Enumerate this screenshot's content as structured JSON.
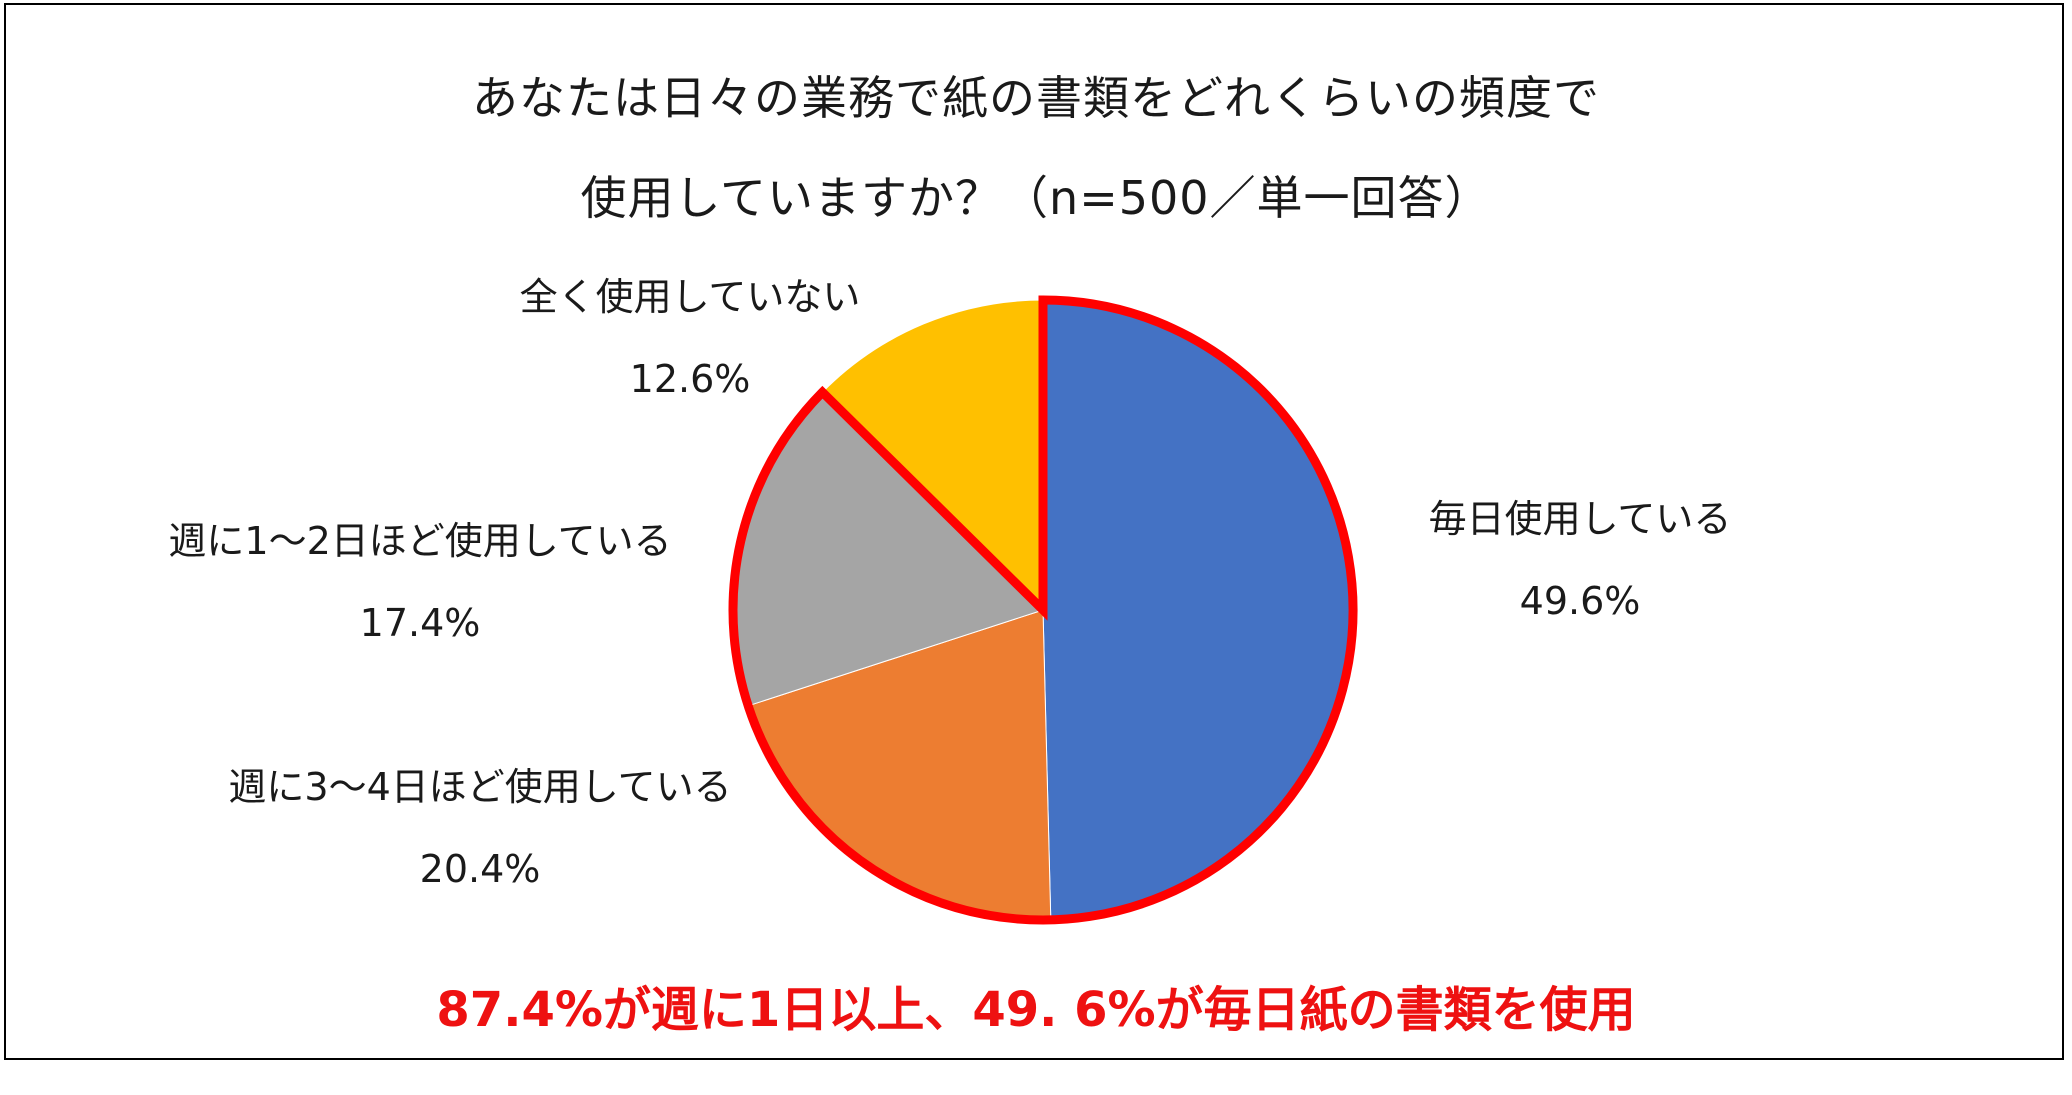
{
  "title_line1": "あなたは日々の業務で紙の書類をどれくらいの頻度で",
  "title_line2": "使用していますか？（n=500／単一回答）",
  "chart_data": {
    "type": "pie",
    "title": "あなたは日々の業務で紙の書類をどれくらいの頻度で使用していますか？（n=500／単一回答）",
    "slices": [
      {
        "label": "毎日使用している",
        "value": 49.6,
        "display": "49.6%",
        "color": "#4472C4"
      },
      {
        "label": "週に3〜4日ほど使用している",
        "value": 20.4,
        "display": "20.4%",
        "color": "#ED7D31"
      },
      {
        "label": "週に1〜2日ほど使用している",
        "value": 17.4,
        "display": "17.4%",
        "color": "#A5A5A5"
      },
      {
        "label": "全く使用していない",
        "value": 12.6,
        "display": "12.6%",
        "color": "#FFC000"
      }
    ],
    "highlight": {
      "description_color": "#FF0000",
      "outlined_slices": [
        "毎日使用している",
        "週に3〜4日ほど使用している",
        "週に1〜2日ほど使用している"
      ]
    }
  },
  "conclusion": "87.4%が週に1日以上、49. 6%が毎日紙の書類を使用"
}
